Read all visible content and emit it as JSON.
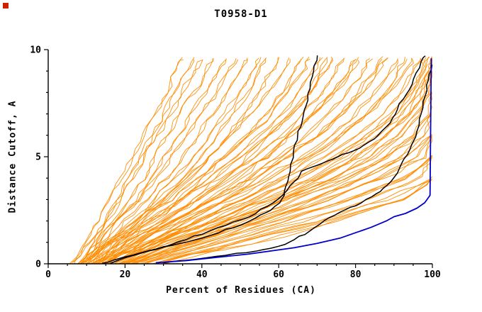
{
  "chart_data": {
    "type": "line",
    "title": "T0958-D1",
    "xlabel": "Percent of Residues (CA)",
    "ylabel": "Distance Cutoff, A",
    "xlim": [
      0,
      100
    ],
    "ylim": [
      0,
      10
    ],
    "x_ticks": [
      0,
      20,
      40,
      60,
      80,
      100
    ],
    "y_ticks": [
      0,
      5,
      10
    ],
    "x_minor_step": 5,
    "y_minor_step": 1,
    "grid": false,
    "legend": "none",
    "colors": {
      "model_lines": "#ff8c00",
      "highlight_lines": "#000000",
      "best_line": "#0000cc",
      "axis": "#000000",
      "corner_marker": "#cc2200",
      "background": "#ffffff"
    },
    "y_levels": [
      0,
      1,
      2,
      3,
      4,
      5,
      6,
      7,
      8,
      9,
      9.6
    ],
    "orange_curves_x": [
      [
        7,
        10,
        13,
        16,
        19,
        22,
        25,
        28,
        31,
        33,
        35
      ],
      [
        8,
        12,
        15,
        18,
        21,
        24,
        27,
        30,
        33,
        36,
        38
      ],
      [
        6,
        11,
        15,
        19,
        22,
        25,
        28,
        32,
        35,
        38,
        40
      ],
      [
        9,
        13,
        17,
        21,
        25,
        28,
        31,
        34,
        38,
        41,
        43
      ],
      [
        10,
        14,
        18,
        23,
        27,
        30,
        34,
        37,
        41,
        44,
        46
      ],
      [
        8,
        13,
        18,
        24,
        28,
        32,
        36,
        40,
        44,
        47,
        49
      ],
      [
        11,
        15,
        20,
        26,
        31,
        35,
        39,
        43,
        47,
        50,
        52
      ],
      [
        12,
        17,
        23,
        28,
        33,
        38,
        42,
        46,
        50,
        53,
        55
      ],
      [
        9,
        15,
        22,
        29,
        35,
        40,
        44,
        48,
        52,
        55,
        57
      ],
      [
        13,
        18,
        25,
        31,
        37,
        42,
        47,
        51,
        55,
        58,
        60
      ],
      [
        10,
        16,
        23,
        30,
        36,
        42,
        48,
        53,
        57,
        61,
        63
      ],
      [
        14,
        20,
        27,
        34,
        40,
        46,
        52,
        57,
        61,
        64,
        66
      ],
      [
        8,
        15,
        24,
        32,
        39,
        46,
        52,
        58,
        62,
        66,
        68
      ],
      [
        12,
        19,
        27,
        35,
        42,
        49,
        55,
        61,
        65,
        69,
        71
      ],
      [
        15,
        22,
        30,
        38,
        45,
        52,
        58,
        64,
        68,
        71,
        73
      ],
      [
        9,
        17,
        26,
        35,
        43,
        50,
        57,
        63,
        68,
        72,
        74
      ],
      [
        13,
        21,
        30,
        39,
        47,
        54,
        61,
        66,
        71,
        75,
        77
      ],
      [
        16,
        24,
        33,
        42,
        50,
        57,
        63,
        69,
        74,
        78,
        80
      ],
      [
        10,
        19,
        29,
        39,
        48,
        56,
        63,
        69,
        75,
        79,
        81
      ],
      [
        14,
        23,
        33,
        43,
        52,
        60,
        67,
        73,
        78,
        82,
        84
      ],
      [
        17,
        26,
        36,
        46,
        55,
        63,
        70,
        76,
        81,
        85,
        87
      ],
      [
        11,
        21,
        32,
        43,
        53,
        62,
        70,
        77,
        82,
        86,
        88
      ],
      [
        15,
        25,
        36,
        47,
        57,
        66,
        74,
        80,
        85,
        89,
        91
      ],
      [
        18,
        28,
        39,
        50,
        60,
        69,
        77,
        83,
        88,
        91,
        93
      ],
      [
        12,
        23,
        35,
        47,
        58,
        68,
        76,
        83,
        89,
        93,
        95
      ],
      [
        16,
        27,
        39,
        51,
        62,
        72,
        80,
        87,
        92,
        95,
        97
      ],
      [
        19,
        30,
        42,
        54,
        65,
        75,
        83,
        89,
        94,
        97,
        98
      ],
      [
        13,
        26,
        40,
        53,
        65,
        76,
        84,
        91,
        95,
        98,
        99
      ],
      [
        17,
        29,
        43,
        56,
        68,
        78,
        86,
        92,
        96,
        99,
        100
      ],
      [
        20,
        33,
        46,
        59,
        71,
        81,
        88,
        94,
        97,
        99,
        100
      ],
      [
        15,
        28,
        43,
        57,
        70,
        80,
        88,
        94,
        98,
        100,
        null
      ],
      [
        21,
        34,
        48,
        62,
        74,
        84,
        91,
        96,
        99,
        100,
        null
      ],
      [
        18,
        32,
        47,
        61,
        74,
        85,
        92,
        97,
        100,
        null,
        null
      ],
      [
        22,
        36,
        51,
        65,
        78,
        88,
        95,
        99,
        100,
        null,
        null
      ],
      [
        16,
        31,
        47,
        63,
        77,
        88,
        96,
        100,
        null,
        null,
        null
      ],
      [
        23,
        38,
        54,
        69,
        82,
        92,
        98,
        100,
        null,
        null,
        null
      ],
      [
        19,
        35,
        52,
        68,
        82,
        93,
        100,
        null,
        null,
        null,
        null
      ],
      [
        24,
        40,
        57,
        73,
        86,
        96,
        100,
        null,
        null,
        null,
        null
      ],
      [
        20,
        37,
        55,
        72,
        87,
        98,
        100,
        null,
        null,
        null,
        null
      ],
      [
        25,
        43,
        61,
        78,
        92,
        100,
        null,
        null,
        null,
        null,
        null
      ],
      [
        22,
        41,
        60,
        78,
        93,
        100,
        null,
        null,
        null,
        null,
        null
      ],
      [
        26,
        46,
        66,
        84,
        97,
        100,
        null,
        null,
        null,
        null,
        null
      ],
      [
        28,
        49,
        70,
        88,
        100,
        null,
        null,
        null,
        null,
        null,
        null
      ],
      [
        30,
        53,
        75,
        93,
        100,
        null,
        null,
        null,
        null,
        null,
        null
      ],
      [
        27,
        50,
        73,
        92,
        100,
        null,
        null,
        null,
        null,
        null,
        null
      ]
    ],
    "black_curves": [
      [
        [
          14,
          0
        ],
        [
          18,
          0.2
        ],
        [
          24,
          0.5
        ],
        [
          30,
          0.8
        ],
        [
          36,
          1.0
        ],
        [
          42,
          1.3
        ],
        [
          48,
          1.7
        ],
        [
          54,
          2.1
        ],
        [
          58,
          2.5
        ],
        [
          61,
          3.0
        ],
        [
          62,
          3.6
        ],
        [
          63,
          4.3
        ],
        [
          64,
          5.2
        ],
        [
          65,
          6.0
        ],
        [
          66,
          6.6
        ],
        [
          67,
          7.4
        ],
        [
          68,
          8.2
        ],
        [
          69,
          9.0
        ],
        [
          70,
          9.7
        ]
      ],
      [
        [
          16,
          0
        ],
        [
          22,
          0.4
        ],
        [
          28,
          0.7
        ],
        [
          34,
          1.0
        ],
        [
          40,
          1.4
        ],
        [
          46,
          1.8
        ],
        [
          52,
          2.2
        ],
        [
          57,
          2.7
        ],
        [
          61,
          3.2
        ],
        [
          64,
          3.8
        ],
        [
          66,
          4.3
        ],
        [
          70,
          4.6
        ],
        [
          74,
          4.9
        ],
        [
          78,
          5.2
        ],
        [
          82,
          5.5
        ],
        [
          86,
          6.0
        ],
        [
          89,
          6.6
        ],
        [
          91,
          7.2
        ],
        [
          93,
          7.9
        ],
        [
          95,
          8.6
        ],
        [
          97,
          9.4
        ],
        [
          98,
          9.7
        ]
      ],
      [
        [
          30,
          0.05
        ],
        [
          38,
          0.2
        ],
        [
          46,
          0.4
        ],
        [
          54,
          0.6
        ],
        [
          60,
          0.8
        ],
        [
          64,
          1.1
        ],
        [
          68,
          1.5
        ],
        [
          72,
          2.0
        ],
        [
          76,
          2.4
        ],
        [
          80,
          2.7
        ],
        [
          84,
          3.1
        ],
        [
          87,
          3.5
        ],
        [
          90,
          4.0
        ],
        [
          92,
          4.6
        ],
        [
          94,
          5.3
        ],
        [
          96,
          6.2
        ],
        [
          97,
          7.0
        ],
        [
          98,
          7.8
        ],
        [
          99,
          8.6
        ],
        [
          100,
          9.3
        ]
      ]
    ],
    "blue_curve": [
      [
        28,
        0.05
      ],
      [
        36,
        0.15
      ],
      [
        44,
        0.3
      ],
      [
        52,
        0.45
      ],
      [
        58,
        0.6
      ],
      [
        64,
        0.75
      ],
      [
        70,
        0.95
      ],
      [
        76,
        1.2
      ],
      [
        80,
        1.45
      ],
      [
        84,
        1.7
      ],
      [
        88,
        2.0
      ],
      [
        90,
        2.2
      ],
      [
        93,
        2.35
      ],
      [
        96,
        2.6
      ],
      [
        98,
        2.85
      ],
      [
        99,
        3.1
      ],
      [
        99.4,
        3.2
      ],
      [
        99.7,
        9.6
      ]
    ],
    "jitter_seed": 7
  }
}
